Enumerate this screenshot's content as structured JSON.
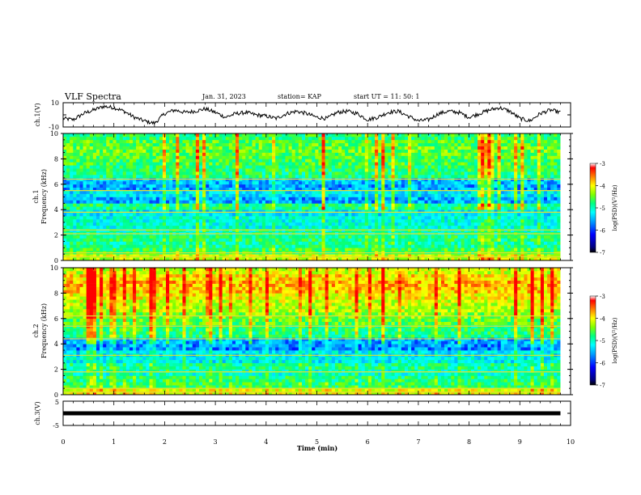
{
  "header": {
    "title": "VLF Spectra",
    "date": "Jan. 31, 2023",
    "station": "station= KAP",
    "start": "start  UT =  11: 50: 1"
  },
  "colors": {
    "trace": "#000000",
    "colormap": [
      "#000080",
      "#0000ff",
      "#00a0ff",
      "#00ffff",
      "#00ff80",
      "#80ff00",
      "#ffff00",
      "#ff8000",
      "#ff0000",
      "#ffffff"
    ]
  },
  "chart_data": [
    {
      "type": "line",
      "name": "ch1-waveform",
      "ylabel": "ch.1(V)",
      "xlim": [
        0,
        10
      ],
      "ylim": [
        -10,
        10
      ],
      "yticks": [
        "10",
        "-10"
      ],
      "x": [
        0.0,
        0.2,
        0.4,
        0.6,
        0.8,
        1.0,
        1.2,
        1.4,
        1.6,
        1.8,
        2.0,
        2.2,
        2.4,
        2.6,
        2.8,
        3.0,
        3.2,
        3.4,
        3.6,
        3.8,
        4.0,
        4.2,
        4.4,
        4.6,
        4.8,
        5.0,
        5.2,
        5.4,
        5.6,
        5.8,
        6.0,
        6.2,
        6.4,
        6.6,
        6.8,
        7.0,
        7.2,
        7.4,
        7.6,
        7.8,
        8.0,
        8.2,
        8.4,
        8.6,
        8.8,
        9.0,
        9.2,
        9.4,
        9.6,
        9.8
      ],
      "y": [
        -3,
        -4,
        1,
        4,
        7,
        6,
        3,
        -2,
        -5,
        -7,
        1,
        4,
        2,
        3,
        5,
        2,
        -2,
        1,
        2,
        0,
        -1,
        -3,
        1,
        3,
        1,
        -2,
        -3,
        2,
        3,
        1,
        -4,
        -2,
        2,
        3,
        -1,
        -5,
        -4,
        1,
        3,
        2,
        -2,
        1,
        4,
        6,
        3,
        -3,
        -5,
        1,
        4,
        2
      ]
    },
    {
      "type": "heatmap",
      "name": "ch1-spectrogram",
      "ylabel": "Frequency (kHz)",
      "channel_label": "ch.1",
      "xlim": [
        0,
        10
      ],
      "ylim": [
        0,
        10
      ],
      "yticks": [
        "0",
        "2",
        "4",
        "6",
        "8",
        "10"
      ],
      "colorbar": {
        "label": "log(PSD)(V²/Hz)",
        "ticks": [
          "-3",
          "-4",
          "-5",
          "-6",
          "-7"
        ],
        "range": [
          -7,
          -3
        ]
      },
      "band_khz": [
        0,
        0.5,
        1,
        1.5,
        2,
        2.5,
        3,
        3.5,
        4,
        4.5,
        5,
        5.5,
        6,
        6.5,
        7,
        7.5,
        8,
        8.5,
        9,
        9.5
      ],
      "band_level": [
        -4.2,
        -4.8,
        -5.1,
        -5.0,
        -5.2,
        -5.4,
        -5.4,
        -5.6,
        -5.0,
        -5.9,
        -5.6,
        -5.9,
        -5.8,
        -5.0,
        -4.9,
        -4.8,
        -4.7,
        -4.6,
        -4.7,
        -4.9
      ]
    },
    {
      "type": "heatmap",
      "name": "ch2-spectrogram",
      "ylabel": "Frequency (kHz)",
      "channel_label": "ch.2",
      "xlim": [
        0,
        10
      ],
      "ylim": [
        0,
        10
      ],
      "yticks": [
        "0",
        "2",
        "4",
        "6",
        "8",
        "10"
      ],
      "colorbar": {
        "label": "log(PSD)(V²/Hz)",
        "ticks": [
          "-3",
          "-4",
          "-5",
          "-6",
          "-7"
        ],
        "range": [
          -7,
          -3
        ]
      },
      "band_khz": [
        0,
        0.5,
        1,
        1.5,
        2,
        2.5,
        3,
        3.5,
        4,
        4.5,
        5,
        5.5,
        6,
        6.5,
        7,
        7.5,
        8,
        8.5,
        9,
        9.5
      ],
      "band_level": [
        -4.1,
        -4.9,
        -5.0,
        -5.3,
        -5.1,
        -5.5,
        -5.6,
        -6.0,
        -5.9,
        -5.0,
        -4.9,
        -4.7,
        -4.5,
        -4.3,
        -4.2,
        -4.0,
        -3.8,
        -3.7,
        -3.9,
        -4.2
      ]
    },
    {
      "type": "line",
      "name": "ch3-waveform",
      "ylabel": "ch.3(V)",
      "xlabel": "Time  (min)",
      "xlim": [
        0,
        10
      ],
      "ylim": [
        -5,
        5
      ],
      "yticks": [
        "5",
        "-5"
      ],
      "xticks": [
        "0",
        "1",
        "2",
        "3",
        "4",
        "5",
        "6",
        "7",
        "8",
        "9",
        "10"
      ],
      "x": [
        0,
        9.8
      ],
      "y": [
        0,
        0
      ]
    }
  ]
}
